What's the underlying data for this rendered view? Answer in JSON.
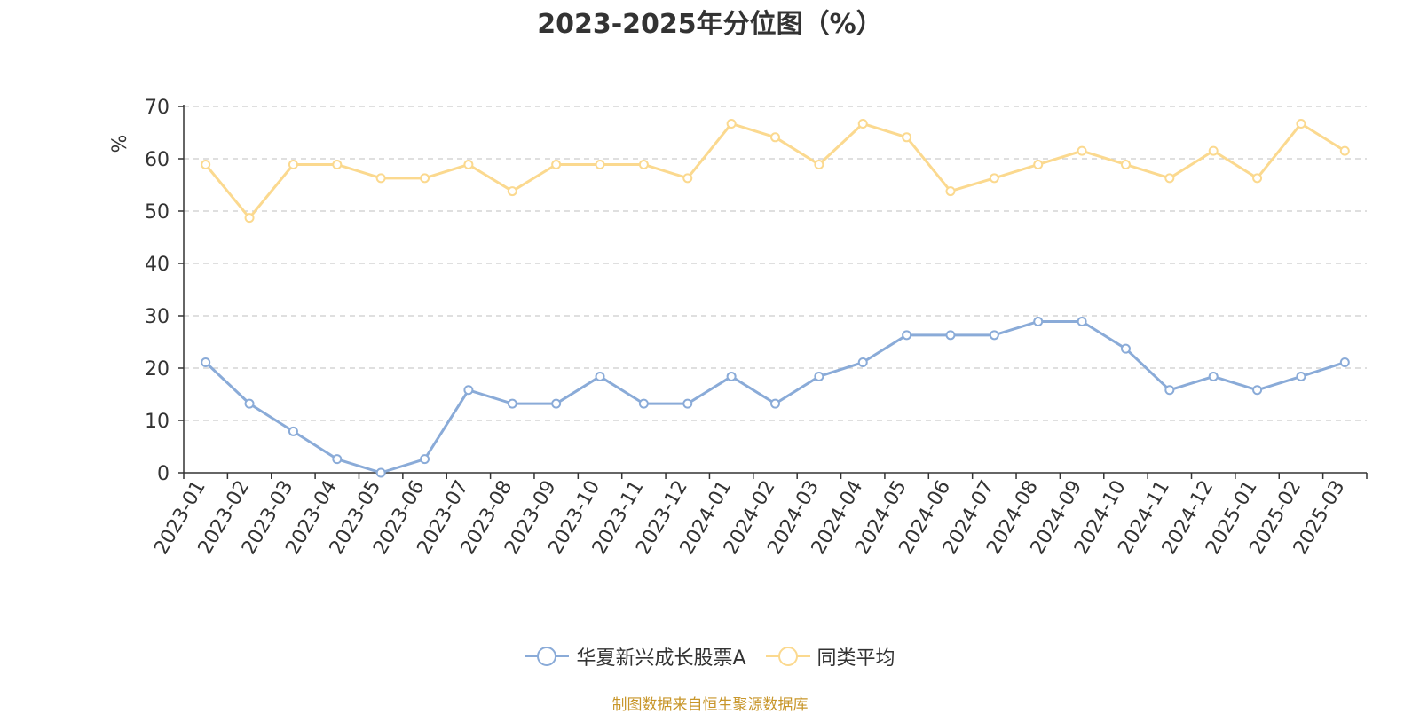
{
  "colors": {
    "series_fund": "#8aabd8",
    "series_avg": "#fbd98f",
    "axis": "#333333",
    "grid": "#cccccc",
    "unit_label": "#ff0000",
    "source_text": "#c8962a"
  },
  "legend_icon": "circle-line-marker",
  "footer": {
    "source": "制图数据来自恒生聚源数据库"
  },
  "chart_data": {
    "type": "line",
    "title": "2023-2025年分位图（%）",
    "xlabel": "",
    "ylabel": "%",
    "ylim": [
      0,
      70
    ],
    "yticks": [
      0,
      10,
      20,
      30,
      40,
      50,
      60,
      70
    ],
    "grid": "horizontal-dashed",
    "legend_position": "bottom",
    "categories": [
      "2023-01",
      "2023-02",
      "2023-03",
      "2023-04",
      "2023-05",
      "2023-06",
      "2023-07",
      "2023-08",
      "2023-09",
      "2023-10",
      "2023-11",
      "2023-12",
      "2024-01",
      "2024-02",
      "2024-03",
      "2024-04",
      "2024-05",
      "2024-06",
      "2024-07",
      "2024-08",
      "2024-09",
      "2024-10",
      "2024-11",
      "2024-12",
      "2025-01",
      "2025-02",
      "2025-03"
    ],
    "series": [
      {
        "name": "华夏新兴成长股票A",
        "color": "#8aabd8",
        "values": [
          21.1,
          13.2,
          7.9,
          2.6,
          0,
          2.6,
          15.8,
          13.2,
          13.2,
          18.4,
          13.2,
          13.2,
          18.4,
          13.2,
          18.4,
          21.1,
          26.3,
          26.3,
          26.3,
          28.9,
          28.9,
          23.7,
          15.8,
          18.4,
          15.8,
          18.4,
          21.1
        ]
      },
      {
        "name": "同类平均",
        "color": "#fbd98f",
        "values": [
          58.9,
          48.7,
          58.9,
          58.9,
          56.3,
          56.3,
          58.9,
          53.8,
          58.9,
          58.9,
          58.9,
          56.3,
          66.7,
          64.1,
          58.9,
          66.7,
          64.1,
          53.8,
          56.3,
          58.9,
          61.5,
          58.9,
          56.3,
          61.5,
          56.3,
          66.7,
          61.5
        ]
      }
    ]
  }
}
